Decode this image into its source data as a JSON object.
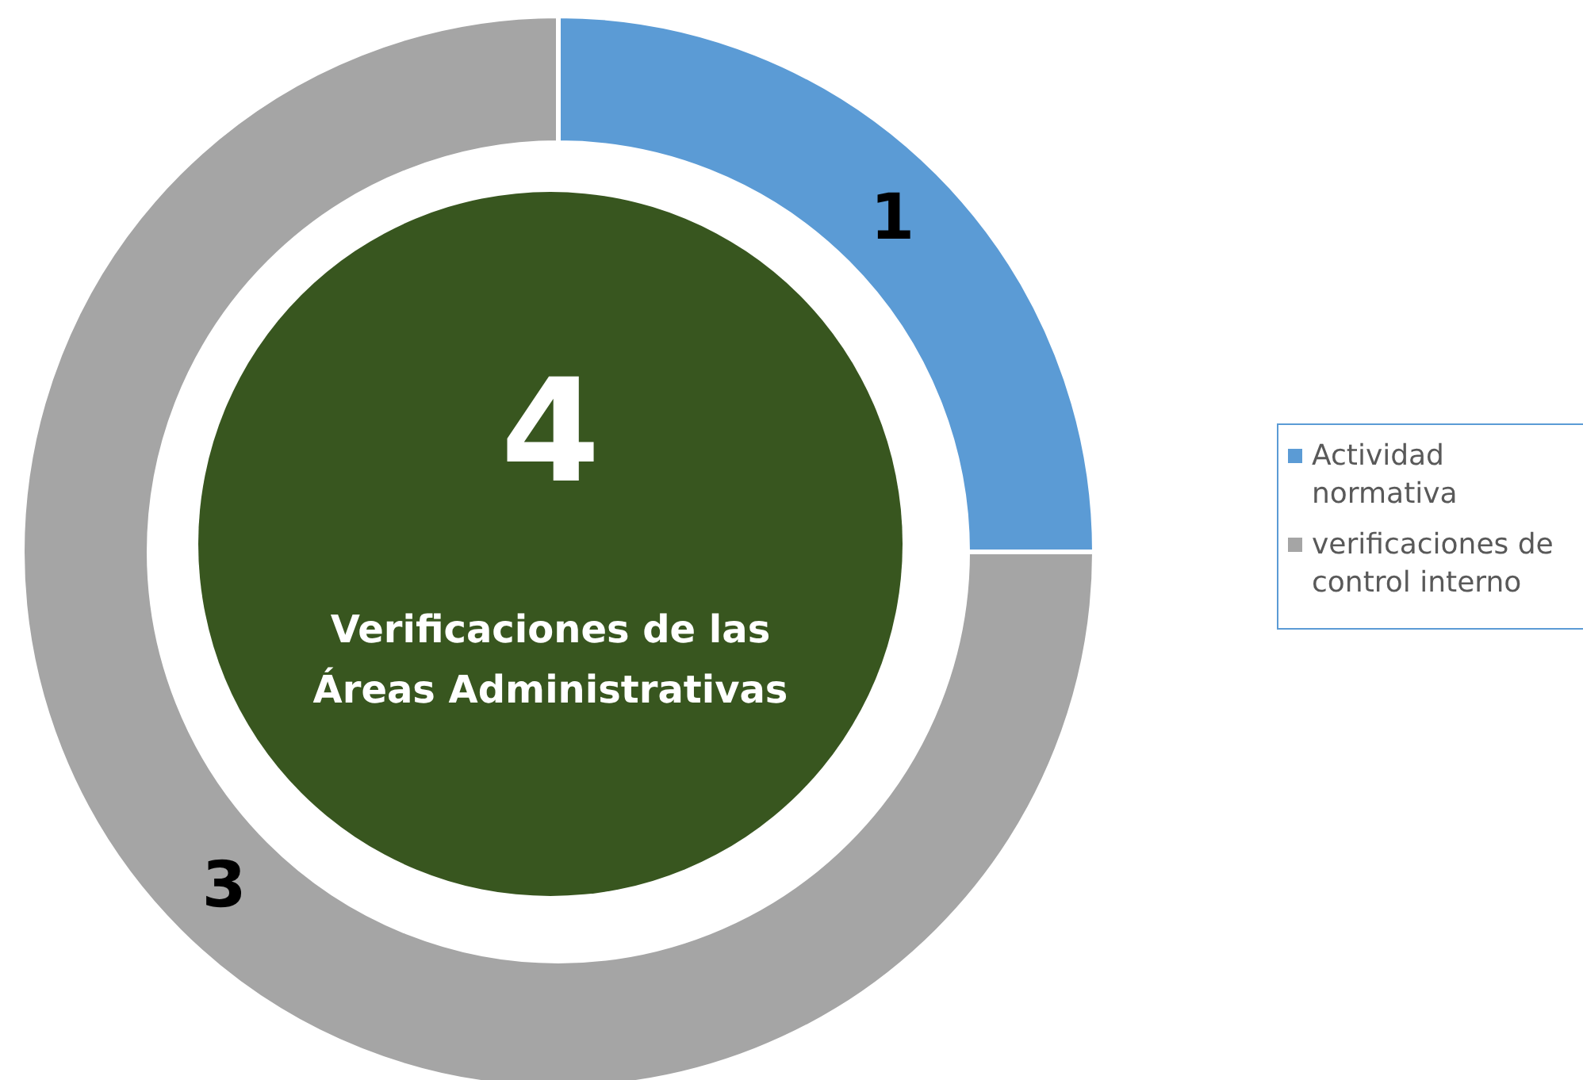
{
  "chart_data": {
    "type": "donut",
    "categories": [
      "Actividad normativa",
      "verificaciones de control interno"
    ],
    "values": [
      1,
      3
    ],
    "colors": [
      "#5b9bd5",
      "#a5a5a5"
    ],
    "data_labels": true,
    "legend": "right",
    "annotations": [
      "4",
      "Verificaciones de las Áreas Administrativas"
    ]
  }
}
